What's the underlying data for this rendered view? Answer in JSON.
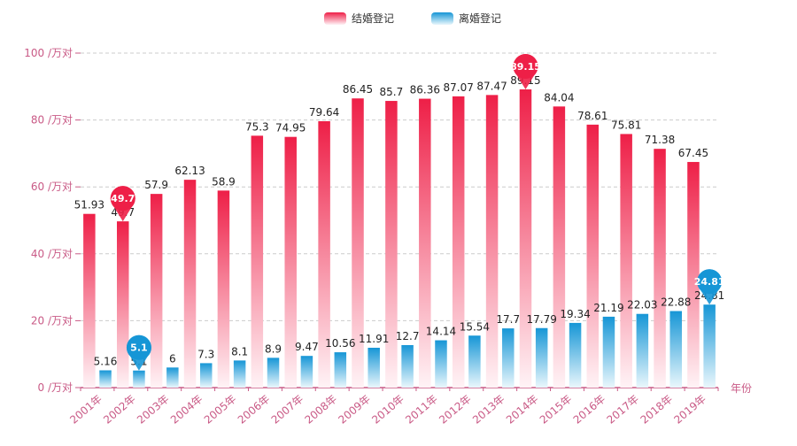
{
  "chart_data": {
    "type": "bar",
    "categories": [
      "2001年",
      "2002年",
      "2003年",
      "2004年",
      "2005年",
      "2006年",
      "2007年",
      "2008年",
      "2009年",
      "2010年",
      "2011年",
      "2012年",
      "2013年",
      "2014年",
      "2015年",
      "2016年",
      "2017年",
      "2018年",
      "2019年"
    ],
    "series": [
      {
        "name": "结婚登记",
        "values": [
          51.93,
          49.7,
          57.9,
          62.13,
          58.9,
          75.3,
          74.95,
          79.64,
          86.45,
          85.7,
          86.36,
          87.07,
          87.47,
          89.15,
          84.04,
          78.61,
          75.81,
          71.38,
          67.45
        ],
        "color_top": "#EE1F47",
        "color_bottom": "#FFF3F6"
      },
      {
        "name": "离婚登记",
        "values": [
          5.16,
          5.1,
          6,
          7.3,
          8.1,
          8.9,
          9.47,
          10.56,
          11.91,
          12.7,
          14.14,
          15.54,
          17.7,
          17.79,
          19.34,
          21.19,
          22.03,
          22.88,
          24.81
        ],
        "color_top": "#1696D6",
        "color_bottom": "#EAF7FC"
      }
    ],
    "ylim": [
      0,
      100
    ],
    "yticks": [
      0,
      20,
      40,
      60,
      80,
      100
    ],
    "ytick_suffix": " /万对",
    "xlabel": "年份",
    "legend_position": "top-center",
    "grid": "dashed horizontal",
    "axis_color": "#C95A86",
    "markers": [
      {
        "series": 0,
        "index": 1,
        "label": "49.7"
      },
      {
        "series": 0,
        "index": 13,
        "label": "89.15"
      },
      {
        "series": 1,
        "index": 1,
        "label": "5.1"
      },
      {
        "series": 1,
        "index": 18,
        "label": "24.81"
      }
    ]
  }
}
